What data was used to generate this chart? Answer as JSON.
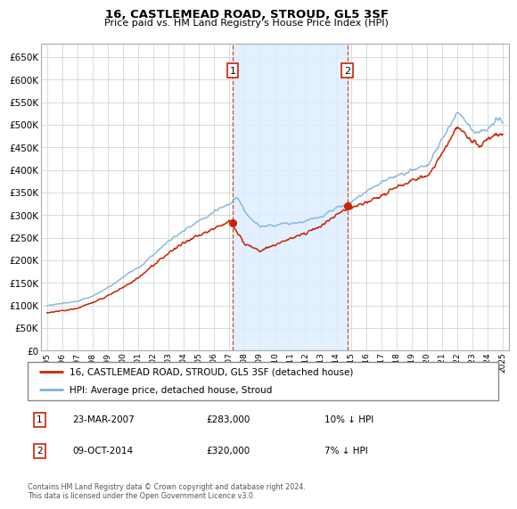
{
  "title": "16, CASTLEMEAD ROAD, STROUD, GL5 3SF",
  "subtitle": "Price paid vs. HM Land Registry's House Price Index (HPI)",
  "legend_line1": "16, CASTLEMEAD ROAD, STROUD, GL5 3SF (detached house)",
  "legend_line2": "HPI: Average price, detached house, Stroud",
  "annotation1_date": "23-MAR-2007",
  "annotation1_price": "£283,000",
  "annotation1_hpi": "10% ↓ HPI",
  "annotation2_date": "09-OCT-2014",
  "annotation2_price": "£320,000",
  "annotation2_hpi": "7% ↓ HPI",
  "footer": "Contains HM Land Registry data © Crown copyright and database right 2024.\nThis data is licensed under the Open Government Licence v3.0.",
  "hpi_color": "#7fb3d9",
  "price_color": "#cc2200",
  "marker_color": "#cc2200",
  "shading_color": "#ddeeff",
  "vline_color": "#cc2200",
  "ylim_min": 0,
  "ylim_max": 680000,
  "ytick_step": 50000,
  "sale1_year": 2007.22,
  "sale1_price": 283000,
  "sale2_year": 2014.77,
  "sale2_price": 320000,
  "hpi_knots_t": [
    1995,
    1996,
    1997,
    1998,
    1999,
    2000,
    2001,
    2002,
    2003,
    2004,
    2005,
    2006,
    2007,
    2007.5,
    2008,
    2009,
    2010,
    2011,
    2012,
    2013,
    2014,
    2015,
    2016,
    2017,
    2018,
    2019,
    2020,
    2021,
    2022,
    2022.5,
    2023,
    2023.5,
    2024,
    2024.5
  ],
  "hpi_knots_v": [
    100000,
    105000,
    110000,
    122000,
    140000,
    162000,
    185000,
    215000,
    245000,
    270000,
    290000,
    310000,
    330000,
    345000,
    310000,
    280000,
    285000,
    290000,
    295000,
    310000,
    330000,
    345000,
    370000,
    395000,
    415000,
    425000,
    430000,
    490000,
    555000,
    535000,
    510000,
    510000,
    520000,
    540000
  ],
  "price_knots_t": [
    1995,
    1996,
    1997,
    1998,
    1999,
    2000,
    2001,
    2002,
    2003,
    2004,
    2005,
    2006,
    2007,
    2007.22,
    2007.5,
    2008,
    2009,
    2010,
    2011,
    2012,
    2013,
    2014,
    2014.77,
    2015,
    2016,
    2017,
    2018,
    2019,
    2020,
    2021,
    2022,
    2022.5,
    2023,
    2023.5,
    2024,
    2024.5
  ],
  "price_knots_v": [
    83000,
    87000,
    92000,
    105000,
    120000,
    140000,
    162000,
    192000,
    218000,
    242000,
    262000,
    278000,
    295000,
    283000,
    268000,
    240000,
    222000,
    235000,
    252000,
    262000,
    275000,
    305000,
    320000,
    318000,
    335000,
    355000,
    378000,
    393000,
    398000,
    450000,
    510000,
    490000,
    470000,
    465000,
    475000,
    490000
  ]
}
